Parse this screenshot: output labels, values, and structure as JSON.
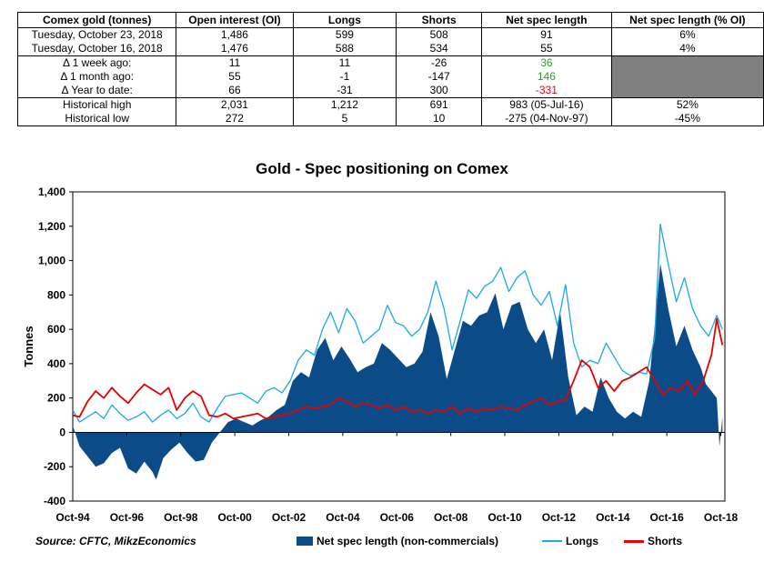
{
  "table": {
    "headers": [
      "Comex gold (tonnes)",
      "Open interest (OI)",
      "Longs",
      "Shorts",
      "Net spec length",
      "Net spec length (% OI)"
    ],
    "rows": [
      {
        "label": "Tuesday, October 23, 2018",
        "oi": "1,486",
        "longs": "599",
        "shorts": "508",
        "net": "91",
        "pct": "6%"
      },
      {
        "label": "Tuesday, October 16, 2018",
        "oi": "1,476",
        "longs": "588",
        "shorts": "534",
        "net": "55",
        "pct": "4%"
      },
      {
        "label": "Δ 1 week ago:",
        "oi": "11",
        "longs": "11",
        "shorts": "-26",
        "net": "36",
        "pct": ""
      },
      {
        "label": "Δ 1 month ago:",
        "oi": "55",
        "longs": "-1",
        "shorts": "-147",
        "net": "146",
        "pct": ""
      },
      {
        "label": "Δ Year to date:",
        "oi": "66",
        "longs": "-31",
        "shorts": "300",
        "net": "-331",
        "pct": ""
      },
      {
        "label": "Historical high",
        "oi": "2,031",
        "longs": "1,212",
        "shorts": "691",
        "net": "983  (05-Jul-16)",
        "pct": "52%"
      },
      {
        "label": "Historical low",
        "oi": "272",
        "longs": "5",
        "shorts": "10",
        "net": "-275  (04-Nov-97)",
        "pct": "-45%"
      }
    ]
  },
  "source": "Source: CFTC, MikzEconomics",
  "colors": {
    "net": "#0a4b88",
    "longs": "#1ca9e6",
    "shorts": "#e80000",
    "positive": "#2ea02e",
    "negative": "#e8001c"
  },
  "chart_data": {
    "type": "area",
    "title": "Gold - Spec positioning on Comex",
    "ylabel": "Tonnes",
    "xlabel": "",
    "ylim": [
      -400,
      1400
    ],
    "yticks": [
      -400,
      -200,
      0,
      200,
      400,
      600,
      800,
      "1,000",
      "1,200",
      "1,400"
    ],
    "xlim": [
      1994.75,
      2018.9
    ],
    "xticks": [
      "Oct-94",
      "Oct-96",
      "Oct-98",
      "Oct-00",
      "Oct-02",
      "Oct-04",
      "Oct-06",
      "Oct-08",
      "Oct-10",
      "Oct-12",
      "Oct-14",
      "Oct-16",
      "Oct-18"
    ],
    "grid": false,
    "legend_position": "bottom",
    "series": [
      {
        "name": "Net spec length (non-commercials)",
        "style": "area",
        "x": [
          1994.75,
          1995.0,
          1995.3,
          1995.6,
          1995.9,
          1996.2,
          1996.5,
          1996.8,
          1997.1,
          1997.4,
          1997.7,
          1997.84,
          1998.1,
          1998.4,
          1998.7,
          1999.0,
          1999.3,
          1999.6,
          1999.9,
          2000.2,
          2000.5,
          2000.8,
          2001.1,
          2001.4,
          2001.7,
          2002.0,
          2002.3,
          2002.6,
          2002.9,
          2003.2,
          2003.5,
          2003.8,
          2004.1,
          2004.4,
          2004.7,
          2005.0,
          2005.3,
          2005.6,
          2005.9,
          2006.2,
          2006.5,
          2006.8,
          2007.1,
          2007.4,
          2007.7,
          2008.0,
          2008.3,
          2008.6,
          2008.9,
          2009.2,
          2009.5,
          2009.8,
          2010.1,
          2010.4,
          2010.7,
          2011.0,
          2011.3,
          2011.6,
          2011.9,
          2012.2,
          2012.5,
          2012.8,
          2013.1,
          2013.4,
          2013.7,
          2014.0,
          2014.3,
          2014.6,
          2014.9,
          2015.2,
          2015.5,
          2015.8,
          2016.1,
          2016.35,
          2016.51,
          2016.8,
          2017.1,
          2017.4,
          2017.7,
          2018.0,
          2018.2,
          2018.4,
          2018.6,
          2018.7,
          2018.81
        ],
        "y": [
          40,
          -80,
          -140,
          -200,
          -180,
          -120,
          -90,
          -210,
          -240,
          -170,
          -230,
          -275,
          -150,
          -100,
          -60,
          -120,
          -170,
          -160,
          -60,
          0,
          60,
          80,
          60,
          40,
          70,
          90,
          130,
          160,
          300,
          350,
          320,
          480,
          550,
          420,
          500,
          430,
          350,
          380,
          400,
          520,
          480,
          430,
          380,
          400,
          470,
          700,
          560,
          310,
          480,
          650,
          620,
          680,
          700,
          810,
          600,
          740,
          760,
          600,
          520,
          600,
          420,
          700,
          320,
          100,
          150,
          120,
          320,
          200,
          120,
          80,
          120,
          90,
          300,
          700,
          983,
          720,
          500,
          620,
          480,
          380,
          280,
          240,
          200,
          -80,
          91
        ]
      },
      {
        "name": "Longs",
        "style": "line",
        "x": [
          1994.75,
          1995.0,
          1995.3,
          1995.6,
          1995.9,
          1996.2,
          1996.5,
          1996.8,
          1997.1,
          1997.4,
          1997.7,
          1998.0,
          1998.3,
          1998.6,
          1998.9,
          1999.2,
          1999.5,
          1999.8,
          2000.1,
          2000.4,
          2000.7,
          2001.0,
          2001.3,
          2001.6,
          2001.9,
          2002.2,
          2002.5,
          2002.8,
          2003.1,
          2003.4,
          2003.7,
          2004.0,
          2004.3,
          2004.6,
          2004.9,
          2005.2,
          2005.5,
          2005.8,
          2006.1,
          2006.4,
          2006.7,
          2007.0,
          2007.3,
          2007.6,
          2007.9,
          2008.2,
          2008.5,
          2008.8,
          2009.1,
          2009.4,
          2009.7,
          2010.0,
          2010.3,
          2010.6,
          2010.9,
          2011.2,
          2011.5,
          2011.8,
          2012.1,
          2012.4,
          2012.7,
          2013.0,
          2013.3,
          2013.6,
          2013.9,
          2014.2,
          2014.5,
          2014.8,
          2015.1,
          2015.4,
          2015.7,
          2016.0,
          2016.3,
          2016.51,
          2016.8,
          2017.1,
          2017.4,
          2017.7,
          2018.0,
          2018.3,
          2018.6,
          2018.81
        ],
        "y": [
          130,
          60,
          90,
          120,
          80,
          160,
          110,
          70,
          90,
          120,
          60,
          100,
          130,
          80,
          110,
          170,
          90,
          60,
          140,
          210,
          220,
          230,
          200,
          170,
          240,
          260,
          230,
          300,
          420,
          480,
          450,
          600,
          700,
          580,
          720,
          650,
          520,
          560,
          600,
          740,
          640,
          620,
          560,
          600,
          700,
          880,
          720,
          480,
          650,
          830,
          780,
          850,
          880,
          960,
          820,
          900,
          940,
          800,
          740,
          820,
          620,
          860,
          520,
          380,
          420,
          400,
          520,
          440,
          360,
          330,
          350,
          340,
          550,
          1212,
          980,
          760,
          900,
          720,
          620,
          560,
          680,
          599
        ]
      },
      {
        "name": "Shorts",
        "style": "line",
        "x": [
          1994.75,
          1995.0,
          1995.3,
          1995.6,
          1995.9,
          1996.2,
          1996.5,
          1996.8,
          1997.1,
          1997.4,
          1997.7,
          1998.0,
          1998.3,
          1998.6,
          1998.9,
          1999.2,
          1999.5,
          1999.8,
          2000.1,
          2000.4,
          2000.7,
          2001.0,
          2001.3,
          2001.6,
          2001.9,
          2002.2,
          2002.5,
          2002.8,
          2003.1,
          2003.4,
          2003.7,
          2004.0,
          2004.3,
          2004.6,
          2004.9,
          2005.2,
          2005.5,
          2005.8,
          2006.1,
          2006.4,
          2006.7,
          2007.0,
          2007.3,
          2007.6,
          2007.9,
          2008.2,
          2008.5,
          2008.8,
          2009.1,
          2009.4,
          2009.7,
          2010.0,
          2010.3,
          2010.6,
          2010.9,
          2011.2,
          2011.5,
          2011.8,
          2012.1,
          2012.4,
          2012.7,
          2013.0,
          2013.3,
          2013.6,
          2013.9,
          2014.2,
          2014.5,
          2014.8,
          2015.1,
          2015.4,
          2015.7,
          2016.0,
          2016.3,
          2016.6,
          2016.9,
          2017.2,
          2017.5,
          2017.8,
          2018.1,
          2018.4,
          2018.6,
          2018.81
        ],
        "y": [
          100,
          90,
          180,
          240,
          200,
          260,
          210,
          170,
          230,
          280,
          250,
          220,
          260,
          130,
          200,
          240,
          210,
          100,
          90,
          110,
          80,
          90,
          100,
          110,
          80,
          90,
          100,
          110,
          130,
          150,
          140,
          150,
          160,
          200,
          180,
          150,
          170,
          160,
          140,
          160,
          130,
          150,
          120,
          130,
          110,
          130,
          120,
          150,
          110,
          140,
          120,
          140,
          130,
          150,
          140,
          130,
          160,
          180,
          200,
          160,
          180,
          190,
          300,
          420,
          380,
          260,
          300,
          240,
          300,
          320,
          350,
          380,
          300,
          220,
          260,
          240,
          300,
          220,
          300,
          450,
          660,
          508
        ]
      }
    ]
  }
}
